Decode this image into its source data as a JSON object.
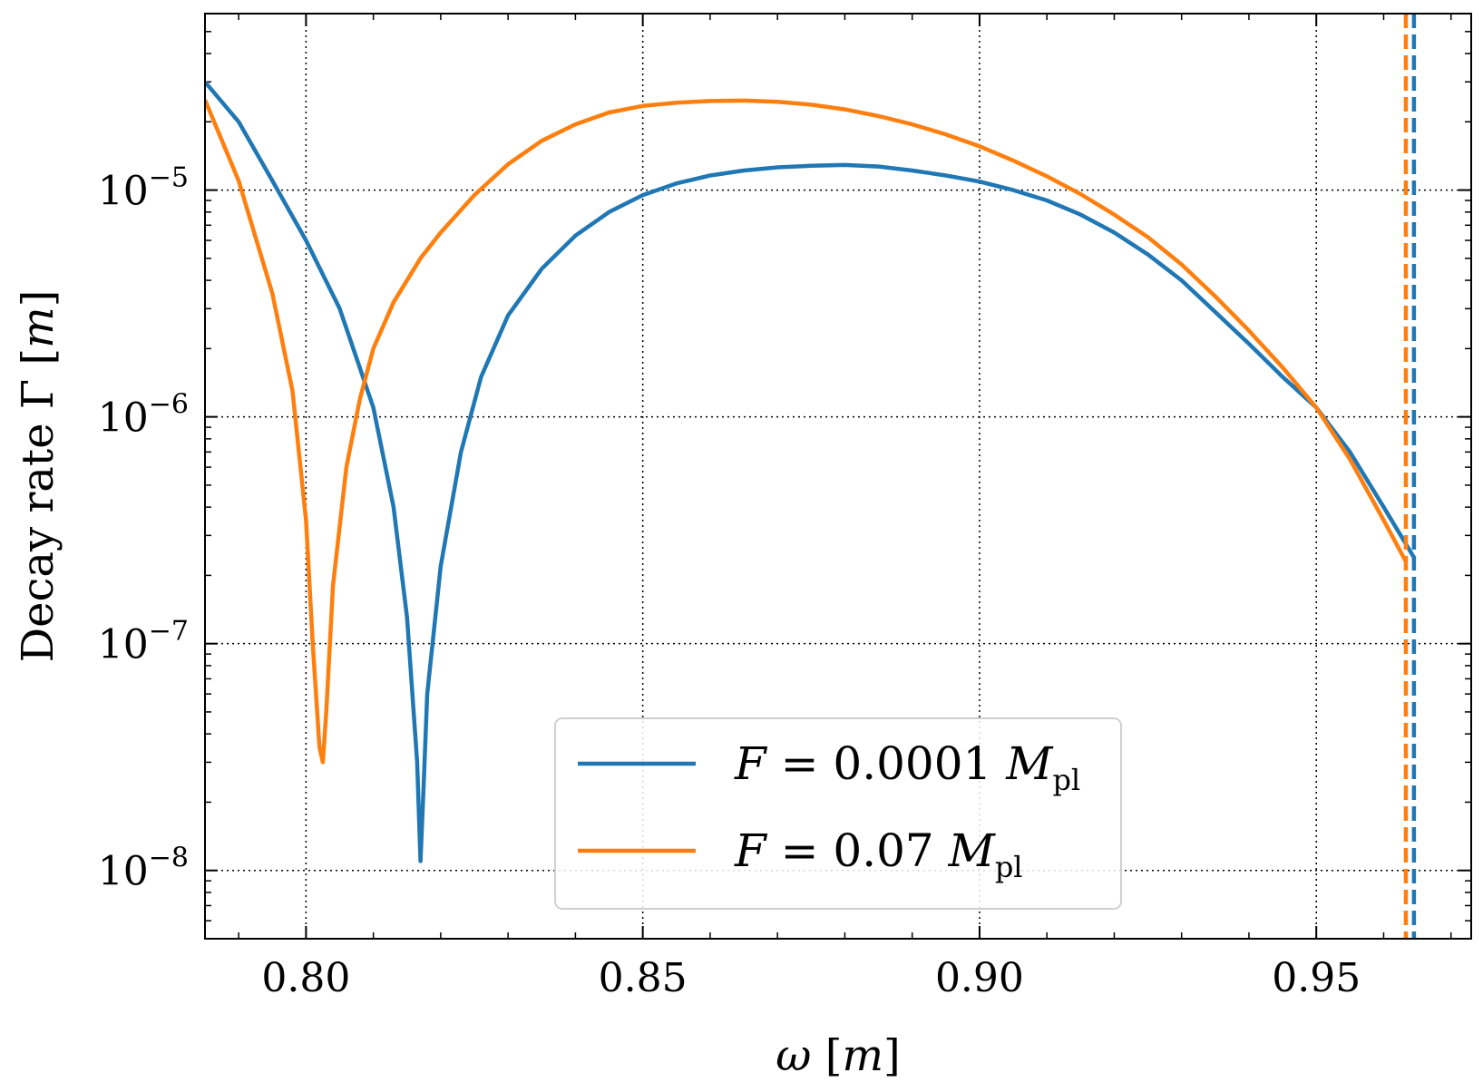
{
  "chart_data": {
    "type": "line",
    "xlabel": "ω [m]",
    "ylabel": "Decay rate Γ [m]",
    "xlim": [
      0.785,
      0.973
    ],
    "ylim": [
      5e-09,
      6e-05
    ],
    "yscale": "log",
    "grid": true,
    "legend_position": "bottom-center",
    "x_ticks": [
      {
        "value": 0.8,
        "label": "0.80"
      },
      {
        "value": 0.85,
        "label": "0.85"
      },
      {
        "value": 0.9,
        "label": "0.90"
      },
      {
        "value": 0.95,
        "label": "0.95"
      }
    ],
    "y_ticks": [
      {
        "value": 1e-08,
        "base": "10",
        "exp": "−8"
      },
      {
        "value": 1e-07,
        "base": "10",
        "exp": "−7"
      },
      {
        "value": 1e-06,
        "base": "10",
        "exp": "−6"
      },
      {
        "value": 1e-05,
        "base": "10",
        "exp": "−5"
      }
    ],
    "series": [
      {
        "name": "F = 0.0001 M_pl",
        "legend": {
          "var": "F",
          "eq": " = 0.0001 ",
          "mass": "M",
          "sub": "pl"
        },
        "color": "#1f77b4",
        "x": [
          0.785,
          0.79,
          0.795,
          0.8,
          0.805,
          0.81,
          0.813,
          0.815,
          0.8165,
          0.817,
          0.8175,
          0.818,
          0.82,
          0.823,
          0.826,
          0.83,
          0.835,
          0.84,
          0.845,
          0.85,
          0.855,
          0.86,
          0.865,
          0.87,
          0.875,
          0.88,
          0.885,
          0.89,
          0.895,
          0.9,
          0.905,
          0.91,
          0.915,
          0.92,
          0.925,
          0.93,
          0.935,
          0.94,
          0.945,
          0.95,
          0.955,
          0.96,
          0.9645
        ],
        "y": [
          3e-05,
          2e-05,
          1.1e-05,
          6e-06,
          3e-06,
          1.1e-06,
          4e-07,
          1.3e-07,
          3e-08,
          1.1e-08,
          2.5e-08,
          6e-08,
          2.2e-07,
          7e-07,
          1.5e-06,
          2.8e-06,
          4.5e-06,
          6.3e-06,
          8e-06,
          9.5e-06,
          1.07e-05,
          1.16e-05,
          1.22e-05,
          1.26e-05,
          1.28e-05,
          1.29e-05,
          1.27e-05,
          1.22e-05,
          1.16e-05,
          1.09e-05,
          1e-05,
          9e-06,
          7.8e-06,
          6.5e-06,
          5.2e-06,
          4e-06,
          2.9e-06,
          2.1e-06,
          1.5e-06,
          1.1e-06,
          7e-07,
          4e-07,
          2.4e-07
        ],
        "threshold": 0.9645
      },
      {
        "name": "F = 0.07 M_pl",
        "legend": {
          "var": "F",
          "eq": " = 0.07 ",
          "mass": "M",
          "sub": "pl"
        },
        "color": "#ff7f0e",
        "x": [
          0.785,
          0.79,
          0.795,
          0.798,
          0.8,
          0.801,
          0.802,
          0.8025,
          0.803,
          0.804,
          0.806,
          0.808,
          0.81,
          0.813,
          0.817,
          0.82,
          0.825,
          0.83,
          0.835,
          0.84,
          0.845,
          0.85,
          0.855,
          0.86,
          0.865,
          0.87,
          0.875,
          0.88,
          0.885,
          0.89,
          0.895,
          0.9,
          0.905,
          0.91,
          0.915,
          0.92,
          0.925,
          0.93,
          0.935,
          0.94,
          0.945,
          0.95,
          0.955,
          0.96,
          0.9633
        ],
        "y": [
          2.5e-05,
          1.1e-05,
          3.5e-06,
          1.3e-06,
          3.5e-07,
          1e-07,
          3.5e-08,
          3e-08,
          5e-08,
          1.8e-07,
          6e-07,
          1.2e-06,
          2e-06,
          3.2e-06,
          5e-06,
          6.5e-06,
          9.5e-06,
          1.3e-05,
          1.65e-05,
          1.95e-05,
          2.2e-05,
          2.35e-05,
          2.43e-05,
          2.47e-05,
          2.48e-05,
          2.45e-05,
          2.38e-05,
          2.27e-05,
          2.12e-05,
          1.95e-05,
          1.76e-05,
          1.56e-05,
          1.35e-05,
          1.15e-05,
          9.6e-06,
          7.8e-06,
          6.2e-06,
          4.7e-06,
          3.4e-06,
          2.4e-06,
          1.65e-06,
          1.1e-06,
          6.5e-07,
          3.5e-07,
          2.3e-07
        ],
        "threshold": 0.9633
      }
    ]
  }
}
